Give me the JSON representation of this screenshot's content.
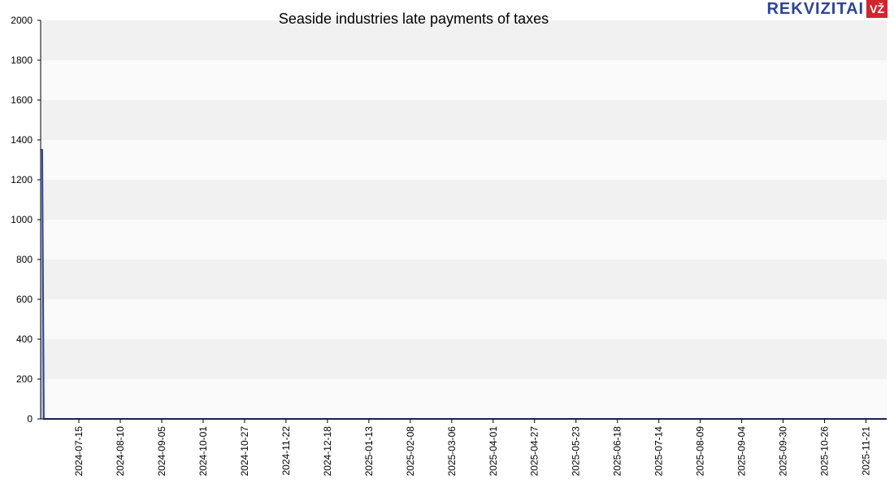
{
  "brand": {
    "logo_text": "REKVIZITAI",
    "logo_badge": "VŽ",
    "primary_color": "#2f4496",
    "badge_color": "#d0262e"
  },
  "chart_data": {
    "type": "area",
    "title": "Seaside industries late payments of taxes",
    "xlabel": "",
    "ylabel": "",
    "ylim": [
      0,
      2000
    ],
    "yticks": [
      0,
      200,
      400,
      600,
      800,
      1000,
      1200,
      1400,
      1600,
      1800,
      2000
    ],
    "xlim": [
      "2024-06-21",
      "2025-12-04"
    ],
    "xticks": [
      "2024-07-15",
      "2024-08-10",
      "2024-09-05",
      "2024-10-01",
      "2024-10-27",
      "2024-11-22",
      "2024-12-18",
      "2025-01-13",
      "2025-02-08",
      "2025-03-06",
      "2025-04-01",
      "2025-04-27",
      "2025-05-23",
      "2025-06-18",
      "2025-07-14",
      "2025-08-09",
      "2025-09-04",
      "2025-09-30",
      "2025-10-26",
      "2025-11-21"
    ],
    "grid": "horizontal-bands",
    "series": [
      {
        "color": "#2f4496",
        "points": [
          {
            "x": "2024-06-21",
            "y": 1350
          },
          {
            "x": "2024-06-22",
            "y": 1350
          },
          {
            "x": "2024-06-23",
            "y": 0
          },
          {
            "x": "2025-12-04",
            "y": 0
          }
        ]
      }
    ]
  }
}
